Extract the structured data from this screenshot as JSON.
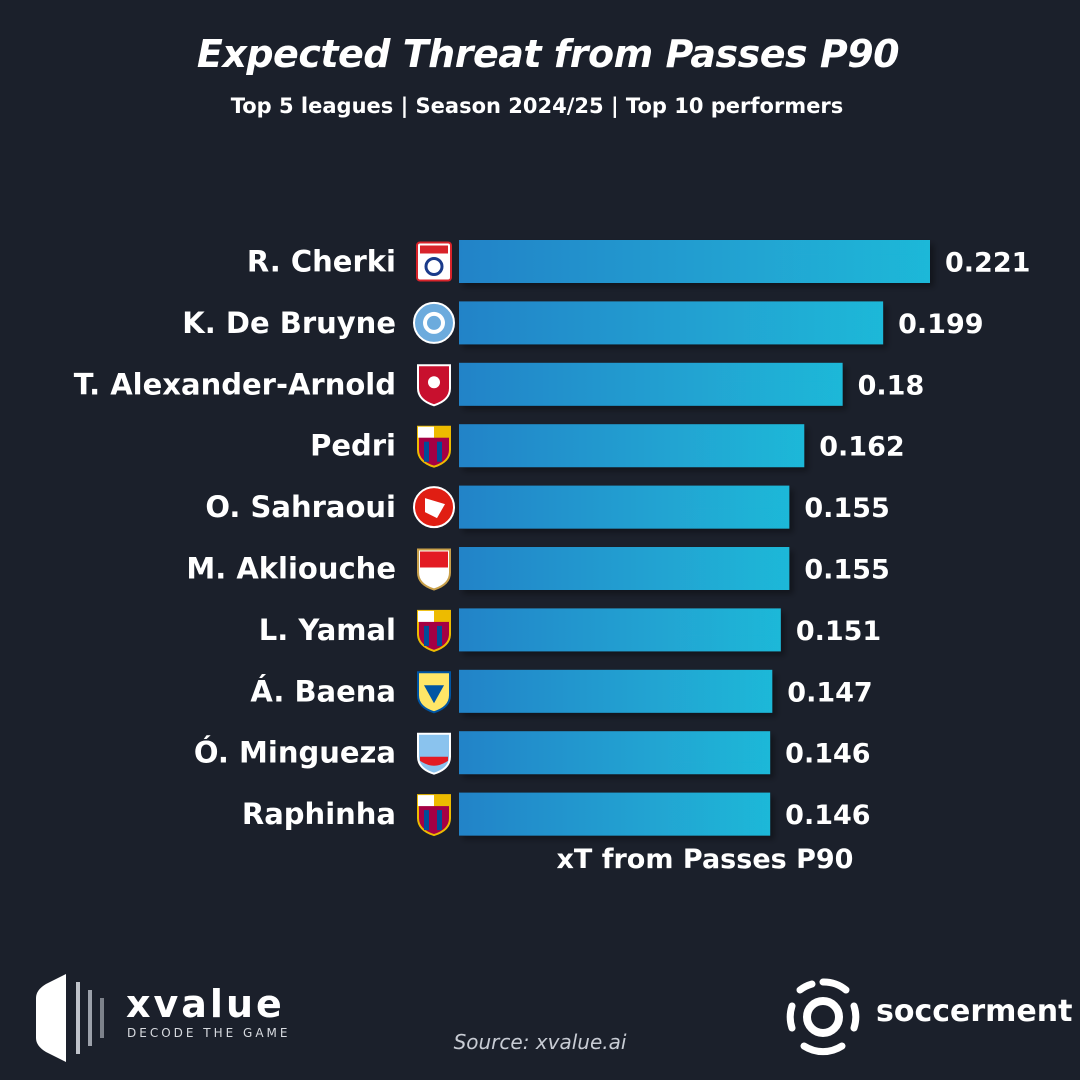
{
  "title": "Expected Threat from Passes P90",
  "subtitle": "Top 5 leagues | Season 2024/25 | Top 10 performers",
  "chart_data": {
    "type": "bar",
    "orientation": "horizontal",
    "categories": [
      "R. Cherki",
      "K. De Bruyne",
      "T. Alexander-Arnold",
      "Pedri",
      "O. Sahraoui",
      "M. Akliouche",
      "L. Yamal",
      "Á. Baena",
      "Ó. Mingueza",
      "Raphinha"
    ],
    "values": [
      0.221,
      0.199,
      0.18,
      0.162,
      0.155,
      0.155,
      0.151,
      0.147,
      0.146,
      0.146
    ],
    "value_labels": [
      "0.221",
      "0.199",
      "0.18",
      "0.162",
      "0.155",
      "0.155",
      "0.151",
      "0.147",
      "0.146",
      "0.146"
    ],
    "club_icons": [
      "lyon-crest-icon",
      "man-city-crest-icon",
      "liverpool-crest-icon",
      "barcelona-crest-icon",
      "lille-crest-icon",
      "monaco-crest-icon",
      "barcelona-crest-icon",
      "villarreal-crest-icon",
      "celta-crest-icon",
      "barcelona-crest-icon"
    ],
    "xlabel": "xT from Passes P90",
    "xlim": [
      0,
      0.221
    ],
    "grid": false,
    "bar_color_start": "#2283c8",
    "bar_color_end": "#1fb8d8"
  },
  "footer": {
    "source": "Source: xvalue.ai",
    "brand_left": "xvalue",
    "brand_left_tagline": "DECODE THE GAME",
    "brand_right": "soccerment"
  },
  "colors": {
    "background": "#1b202b",
    "text": "#ffffff"
  }
}
